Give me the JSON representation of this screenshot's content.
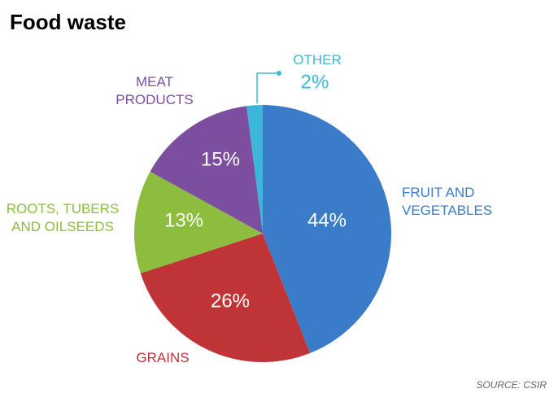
{
  "chart_data": {
    "type": "pie",
    "title": "Food waste",
    "categories": [
      "FRUIT AND VEGETABLES",
      "GRAINS",
      "ROOTS, TUBERS AND OILSEEDS",
      "MEAT PRODUCTS",
      "OTHER"
    ],
    "values": [
      44,
      26,
      13,
      15,
      2
    ],
    "value_labels": [
      "44%",
      "26%",
      "13%",
      "15%",
      "2%"
    ],
    "colors": [
      "#3b7cc8",
      "#bf3537",
      "#8cbd3f",
      "#7b4e9f",
      "#3db7d9"
    ],
    "source": "SOURCE: CSIR"
  }
}
